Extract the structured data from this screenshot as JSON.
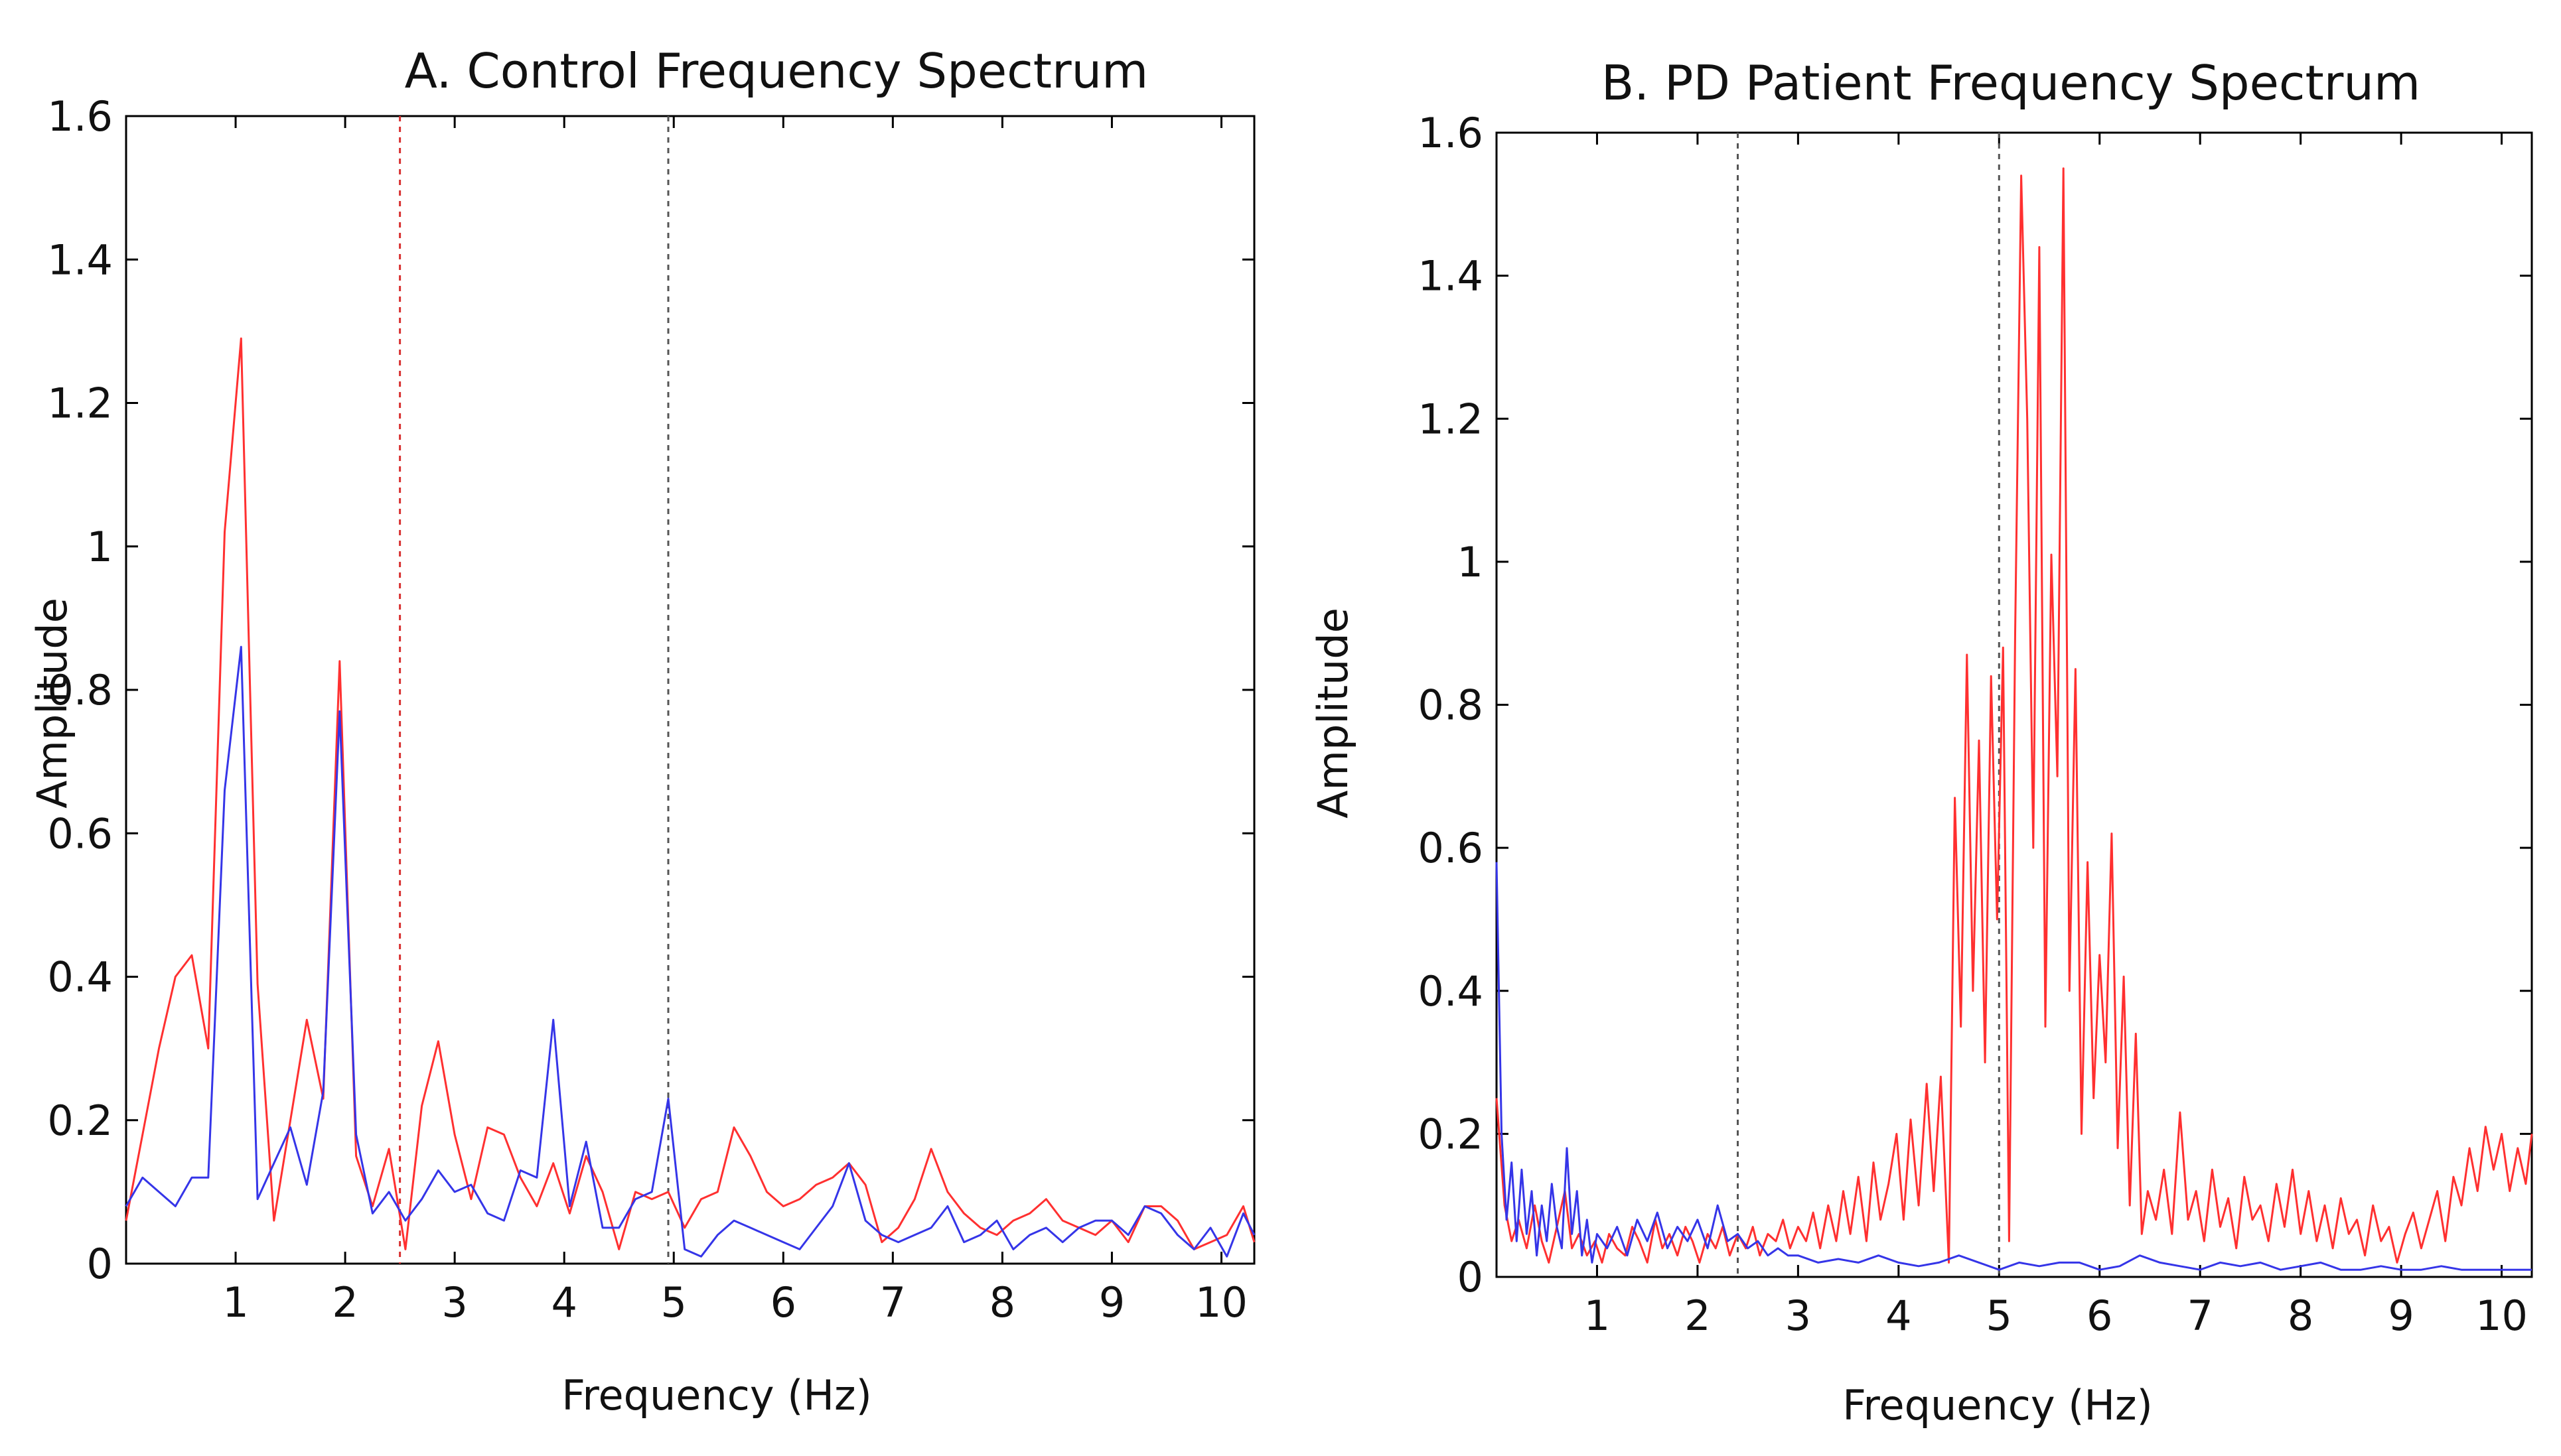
{
  "colors": {
    "red": "#ff3030",
    "blue": "#3535e8",
    "vline_dark": "#555555",
    "vline_red": "#d83030"
  },
  "chart_data": [
    {
      "type": "line",
      "title": "A. Control Frequency Spectrum",
      "xlabel": "Frequency (Hz)",
      "ylabel": "Amplitude",
      "xlim": [
        0.0,
        10.3
      ],
      "ylim": [
        0,
        1.6
      ],
      "xticks": [
        1,
        2,
        3,
        4,
        5,
        6,
        7,
        8,
        9,
        10
      ],
      "yticks": [
        0,
        0.2,
        0.4,
        0.6,
        0.8,
        1,
        1.2,
        1.4,
        1.6
      ],
      "ytick_labels": [
        "0",
        "0.2",
        "0.4",
        "0.6",
        "0.8",
        "1",
        "1.2",
        "1.4",
        "1.6"
      ],
      "vlines": [
        {
          "x": 2.5,
          "color": "red"
        },
        {
          "x": 4.95,
          "color": "dark"
        }
      ],
      "series": [
        {
          "name": "red",
          "color": "red",
          "x": [
            0.0,
            0.15,
            0.3,
            0.45,
            0.6,
            0.75,
            0.9,
            1.05,
            1.2,
            1.35,
            1.5,
            1.65,
            1.8,
            1.95,
            2.1,
            2.25,
            2.4,
            2.55,
            2.7,
            2.85,
            3.0,
            3.15,
            3.3,
            3.45,
            3.6,
            3.75,
            3.9,
            4.05,
            4.2,
            4.35,
            4.5,
            4.65,
            4.8,
            4.95,
            5.1,
            5.25,
            5.4,
            5.55,
            5.7,
            5.85,
            6.0,
            6.15,
            6.3,
            6.45,
            6.6,
            6.75,
            6.9,
            7.05,
            7.2,
            7.35,
            7.5,
            7.65,
            7.8,
            7.95,
            8.1,
            8.25,
            8.4,
            8.55,
            8.7,
            8.85,
            9.0,
            9.15,
            9.3,
            9.45,
            9.6,
            9.75,
            9.9,
            10.05,
            10.2,
            10.3
          ],
          "y": [
            0.06,
            0.18,
            0.3,
            0.4,
            0.43,
            0.3,
            1.02,
            1.29,
            0.39,
            0.06,
            0.2,
            0.34,
            0.23,
            0.84,
            0.15,
            0.08,
            0.16,
            0.02,
            0.22,
            0.31,
            0.18,
            0.09,
            0.19,
            0.18,
            0.12,
            0.08,
            0.14,
            0.07,
            0.15,
            0.1,
            0.02,
            0.1,
            0.09,
            0.1,
            0.05,
            0.09,
            0.1,
            0.19,
            0.15,
            0.1,
            0.08,
            0.09,
            0.11,
            0.12,
            0.14,
            0.11,
            0.03,
            0.05,
            0.09,
            0.16,
            0.1,
            0.07,
            0.05,
            0.04,
            0.06,
            0.07,
            0.09,
            0.06,
            0.05,
            0.04,
            0.06,
            0.03,
            0.08,
            0.08,
            0.06,
            0.02,
            0.03,
            0.04,
            0.08,
            0.03
          ]
        },
        {
          "name": "blue",
          "color": "blue",
          "x": [
            0.0,
            0.15,
            0.3,
            0.45,
            0.6,
            0.75,
            0.9,
            1.05,
            1.2,
            1.35,
            1.5,
            1.65,
            1.8,
            1.95,
            2.1,
            2.25,
            2.4,
            2.55,
            2.7,
            2.85,
            3.0,
            3.15,
            3.3,
            3.45,
            3.6,
            3.75,
            3.9,
            4.05,
            4.2,
            4.35,
            4.5,
            4.65,
            4.8,
            4.95,
            5.1,
            5.25,
            5.4,
            5.55,
            5.7,
            5.85,
            6.0,
            6.15,
            6.3,
            6.45,
            6.6,
            6.75,
            6.9,
            7.05,
            7.2,
            7.35,
            7.5,
            7.65,
            7.8,
            7.95,
            8.1,
            8.25,
            8.4,
            8.55,
            8.7,
            8.85,
            9.0,
            9.15,
            9.3,
            9.45,
            9.6,
            9.75,
            9.9,
            10.05,
            10.2,
            10.3
          ],
          "y": [
            0.08,
            0.12,
            0.1,
            0.08,
            0.12,
            0.12,
            0.66,
            0.86,
            0.09,
            0.14,
            0.19,
            0.11,
            0.24,
            0.77,
            0.18,
            0.07,
            0.1,
            0.06,
            0.09,
            0.13,
            0.1,
            0.11,
            0.07,
            0.06,
            0.13,
            0.12,
            0.34,
            0.08,
            0.17,
            0.05,
            0.05,
            0.09,
            0.1,
            0.23,
            0.02,
            0.01,
            0.04,
            0.06,
            0.05,
            0.04,
            0.03,
            0.02,
            0.05,
            0.08,
            0.14,
            0.06,
            0.04,
            0.03,
            0.04,
            0.05,
            0.08,
            0.03,
            0.04,
            0.06,
            0.02,
            0.04,
            0.05,
            0.03,
            0.05,
            0.06,
            0.06,
            0.04,
            0.08,
            0.07,
            0.04,
            0.02,
            0.05,
            0.01,
            0.07,
            0.04
          ]
        }
      ]
    },
    {
      "type": "line",
      "title": "B. PD Patient Frequency Spectrum",
      "xlabel": "Frequency (Hz)",
      "ylabel": "Amplitude",
      "xlim": [
        0.0,
        10.3
      ],
      "ylim": [
        0,
        1.6
      ],
      "xticks": [
        1,
        2,
        3,
        4,
        5,
        6,
        7,
        8,
        9,
        10
      ],
      "yticks": [
        0,
        0.2,
        0.4,
        0.6,
        0.8,
        1,
        1.2,
        1.4,
        1.6
      ],
      "ytick_labels": [
        "0",
        "0.2",
        "0.4",
        "0.6",
        "0.8",
        "1",
        "1.2",
        "1.4",
        "1.6"
      ],
      "vlines": [
        {
          "x": 2.4,
          "color": "dark"
        },
        {
          "x": 5.0,
          "color": "dark"
        }
      ],
      "series": [
        {
          "name": "red",
          "color": "red",
          "x": [
            0.0,
            0.08,
            0.15,
            0.22,
            0.3,
            0.38,
            0.45,
            0.52,
            0.6,
            0.68,
            0.75,
            0.82,
            0.9,
            0.98,
            1.05,
            1.12,
            1.2,
            1.28,
            1.35,
            1.42,
            1.5,
            1.58,
            1.65,
            1.72,
            1.8,
            1.88,
            1.95,
            2.02,
            2.1,
            2.18,
            2.25,
            2.32,
            2.4,
            2.48,
            2.55,
            2.62,
            2.7,
            2.78,
            2.85,
            2.92,
            3.0,
            3.08,
            3.15,
            3.22,
            3.3,
            3.38,
            3.45,
            3.52,
            3.6,
            3.68,
            3.75,
            3.82,
            3.9,
            3.98,
            4.05,
            4.12,
            4.2,
            4.28,
            4.35,
            4.42,
            4.5,
            4.56,
            4.62,
            4.68,
            4.74,
            4.8,
            4.86,
            4.92,
            4.98,
            5.04,
            5.1,
            5.16,
            5.22,
            5.28,
            5.34,
            5.4,
            5.46,
            5.52,
            5.58,
            5.64,
            5.7,
            5.76,
            5.82,
            5.88,
            5.94,
            6.0,
            6.06,
            6.12,
            6.18,
            6.24,
            6.3,
            6.36,
            6.42,
            6.48,
            6.56,
            6.64,
            6.72,
            6.8,
            6.88,
            6.96,
            7.04,
            7.12,
            7.2,
            7.28,
            7.36,
            7.44,
            7.52,
            7.6,
            7.68,
            7.76,
            7.84,
            7.92,
            8.0,
            8.08,
            8.16,
            8.24,
            8.32,
            8.4,
            8.48,
            8.56,
            8.64,
            8.72,
            8.8,
            8.88,
            8.96,
            9.04,
            9.12,
            9.2,
            9.28,
            9.36,
            9.44,
            9.52,
            9.6,
            9.68,
            9.76,
            9.84,
            9.92,
            10.0,
            10.08,
            10.16,
            10.24,
            10.3
          ],
          "y": [
            0.25,
            0.1,
            0.05,
            0.08,
            0.04,
            0.1,
            0.05,
            0.02,
            0.07,
            0.12,
            0.04,
            0.06,
            0.03,
            0.05,
            0.02,
            0.06,
            0.04,
            0.03,
            0.07,
            0.05,
            0.02,
            0.08,
            0.04,
            0.06,
            0.03,
            0.07,
            0.05,
            0.02,
            0.06,
            0.04,
            0.07,
            0.03,
            0.06,
            0.04,
            0.07,
            0.03,
            0.06,
            0.05,
            0.08,
            0.04,
            0.07,
            0.05,
            0.09,
            0.04,
            0.1,
            0.05,
            0.12,
            0.06,
            0.14,
            0.05,
            0.16,
            0.08,
            0.13,
            0.2,
            0.08,
            0.22,
            0.1,
            0.27,
            0.12,
            0.28,
            0.02,
            0.67,
            0.35,
            0.87,
            0.4,
            0.75,
            0.3,
            0.84,
            0.5,
            0.88,
            0.05,
            0.9,
            1.54,
            1.2,
            0.6,
            1.44,
            0.35,
            1.01,
            0.7,
            1.55,
            0.4,
            0.85,
            0.2,
            0.58,
            0.25,
            0.45,
            0.3,
            0.62,
            0.18,
            0.42,
            0.1,
            0.34,
            0.06,
            0.12,
            0.08,
            0.15,
            0.06,
            0.23,
            0.08,
            0.12,
            0.05,
            0.15,
            0.07,
            0.11,
            0.04,
            0.14,
            0.08,
            0.1,
            0.05,
            0.13,
            0.07,
            0.15,
            0.06,
            0.12,
            0.05,
            0.1,
            0.04,
            0.11,
            0.06,
            0.08,
            0.03,
            0.1,
            0.05,
            0.07,
            0.02,
            0.06,
            0.09,
            0.04,
            0.08,
            0.12,
            0.05,
            0.14,
            0.1,
            0.18,
            0.12,
            0.21,
            0.15,
            0.2,
            0.12,
            0.18,
            0.13,
            0.2
          ]
        },
        {
          "name": "blue",
          "color": "blue",
          "x": [
            0.0,
            0.05,
            0.1,
            0.15,
            0.2,
            0.25,
            0.3,
            0.35,
            0.4,
            0.45,
            0.5,
            0.55,
            0.6,
            0.65,
            0.7,
            0.75,
            0.8,
            0.85,
            0.9,
            0.95,
            1.0,
            1.1,
            1.2,
            1.3,
            1.4,
            1.5,
            1.6,
            1.7,
            1.8,
            1.9,
            2.0,
            2.1,
            2.2,
            2.3,
            2.4,
            2.5,
            2.6,
            2.7,
            2.8,
            2.9,
            3.0,
            3.2,
            3.4,
            3.6,
            3.8,
            4.0,
            4.2,
            4.4,
            4.6,
            4.8,
            5.0,
            5.2,
            5.4,
            5.6,
            5.8,
            6.0,
            6.2,
            6.4,
            6.6,
            6.8,
            7.0,
            7.2,
            7.4,
            7.6,
            7.8,
            8.0,
            8.2,
            8.4,
            8.6,
            8.8,
            9.0,
            9.2,
            9.4,
            9.6,
            9.8,
            10.0,
            10.2,
            10.3
          ],
          "y": [
            0.58,
            0.2,
            0.08,
            0.16,
            0.05,
            0.15,
            0.06,
            0.12,
            0.03,
            0.1,
            0.05,
            0.13,
            0.07,
            0.04,
            0.18,
            0.06,
            0.12,
            0.03,
            0.08,
            0.02,
            0.06,
            0.04,
            0.07,
            0.03,
            0.08,
            0.05,
            0.09,
            0.04,
            0.07,
            0.05,
            0.08,
            0.04,
            0.1,
            0.05,
            0.06,
            0.04,
            0.05,
            0.03,
            0.04,
            0.03,
            0.03,
            0.02,
            0.025,
            0.02,
            0.03,
            0.02,
            0.015,
            0.02,
            0.03,
            0.02,
            0.01,
            0.02,
            0.015,
            0.02,
            0.02,
            0.01,
            0.015,
            0.03,
            0.02,
            0.015,
            0.01,
            0.02,
            0.015,
            0.02,
            0.01,
            0.015,
            0.02,
            0.01,
            0.01,
            0.015,
            0.01,
            0.01,
            0.015,
            0.01,
            0.01,
            0.01,
            0.01,
            0.01
          ]
        }
      ]
    }
  ]
}
